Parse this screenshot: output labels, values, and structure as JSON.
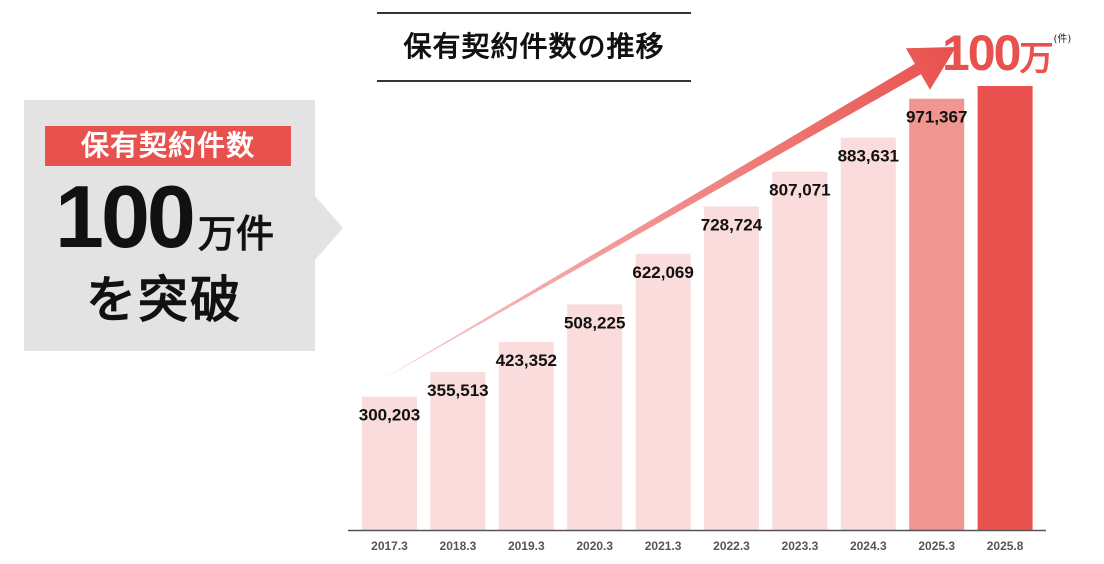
{
  "callout": {
    "label": "保有契約件数",
    "big_number": "100",
    "unit": "万件",
    "line2": "を突破"
  },
  "chart_data": {
    "type": "bar",
    "title": "保有契約件数の推移",
    "categories": [
      "2017.3",
      "2018.3",
      "2019.3",
      "2020.3",
      "2021.3",
      "2022.3",
      "2023.3",
      "2024.3",
      "2025.3",
      "2025.8"
    ],
    "values": [
      300203,
      355513,
      423352,
      508225,
      622069,
      728724,
      807071,
      883631,
      971367,
      1000000
    ],
    "value_labels": [
      "300,203",
      "355,513",
      "423,352",
      "508,225",
      "622,069",
      "728,724",
      "807,071",
      "883,631",
      "971,367",
      ""
    ],
    "peak_label": {
      "number": "100",
      "unit": "万",
      "suffix": "(件)"
    },
    "ylim": [
      0,
      1000000
    ],
    "xlabel": "",
    "ylabel": "",
    "grid": false,
    "bar_colors": [
      "#fadcdc",
      "#fadcdc",
      "#fadcdc",
      "#fadcdc",
      "#fadcdc",
      "#fadcdc",
      "#fadcdc",
      "#fadcdc",
      "#f0958f",
      "#e8514d"
    ],
    "arrow_color": "#e8514d",
    "axis_color": "#555555"
  }
}
